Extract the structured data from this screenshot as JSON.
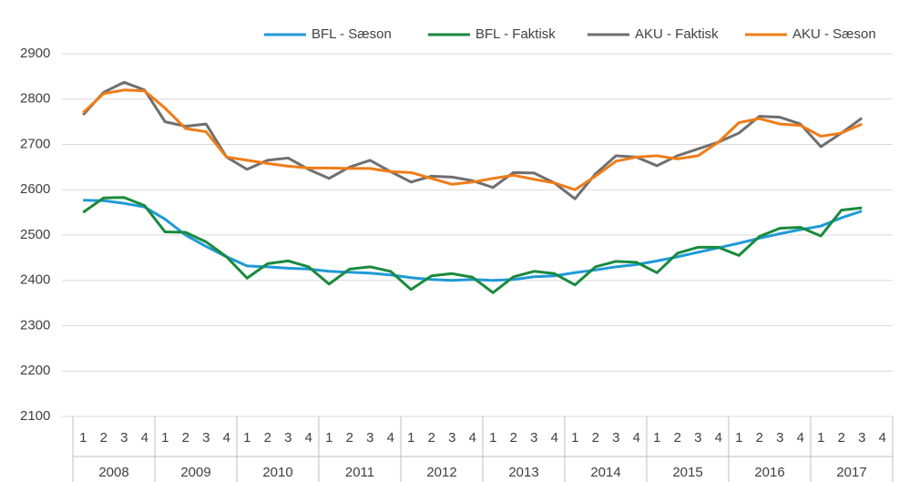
{
  "chart_data": {
    "type": "line",
    "categories": [
      "1",
      "2",
      "3",
      "4",
      "1",
      "2",
      "3",
      "4",
      "1",
      "2",
      "3",
      "4",
      "1",
      "2",
      "3",
      "4",
      "1",
      "2",
      "3",
      "4",
      "1",
      "2",
      "3",
      "4",
      "1",
      "2",
      "3",
      "4",
      "1",
      "2",
      "3",
      "4",
      "1",
      "2",
      "3",
      "4",
      "1",
      "2",
      "3",
      "4"
    ],
    "category_groups": [
      "2008",
      "2009",
      "2010",
      "2011",
      "2012",
      "2013",
      "2014",
      "2015",
      "2016",
      "2017"
    ],
    "series": [
      {
        "name": "BFL - Sæson",
        "color": "#1f9ad6",
        "values": [
          2577,
          2576,
          2570,
          2562,
          2535,
          2500,
          2475,
          2452,
          2432,
          2430,
          2427,
          2425,
          2420,
          2418,
          2416,
          2412,
          2406,
          2402,
          2400,
          2402,
          2400,
          2402,
          2408,
          2410,
          2417,
          2423,
          2430,
          2435,
          2443,
          2452,
          2462,
          2472,
          2482,
          2493,
          2503,
          2512,
          2520,
          2538,
          2553,
          null
        ]
      },
      {
        "name": "BFL - Faktisk",
        "color": "#1a8a3e",
        "values": [
          2550,
          2582,
          2583,
          2565,
          2507,
          2506,
          2485,
          2452,
          2405,
          2437,
          2443,
          2430,
          2392,
          2425,
          2430,
          2420,
          2380,
          2410,
          2415,
          2407,
          2373,
          2408,
          2420,
          2415,
          2390,
          2430,
          2442,
          2440,
          2417,
          2460,
          2473,
          2473,
          2455,
          2497,
          2515,
          2517,
          2498,
          2555,
          2560,
          null
        ]
      },
      {
        "name": "AKU - Faktisk",
        "color": "#6f6f6f",
        "values": [
          2765,
          2815,
          2837,
          2820,
          2750,
          2740,
          2745,
          2672,
          2645,
          2665,
          2670,
          2645,
          2625,
          2650,
          2665,
          2640,
          2617,
          2630,
          2628,
          2620,
          2605,
          2638,
          2637,
          2615,
          2580,
          2635,
          2675,
          2672,
          2653,
          2675,
          2690,
          2705,
          2725,
          2762,
          2760,
          2745,
          2695,
          2725,
          2758,
          null
        ]
      },
      {
        "name": "AKU - Sæson",
        "color": "#f07c17",
        "values": [
          2770,
          2812,
          2820,
          2818,
          2780,
          2735,
          2728,
          2672,
          2665,
          2658,
          2652,
          2648,
          2648,
          2647,
          2647,
          2640,
          2638,
          2625,
          2612,
          2617,
          2625,
          2632,
          2623,
          2615,
          2600,
          2630,
          2663,
          2672,
          2675,
          2668,
          2675,
          2705,
          2748,
          2757,
          2745,
          2742,
          2718,
          2725,
          2745,
          null
        ]
      }
    ],
    "ylim": [
      2100,
      2900
    ],
    "yticks": [
      2100,
      2200,
      2300,
      2400,
      2500,
      2600,
      2700,
      2800,
      2900
    ],
    "grid": true,
    "legend": "top-right"
  }
}
